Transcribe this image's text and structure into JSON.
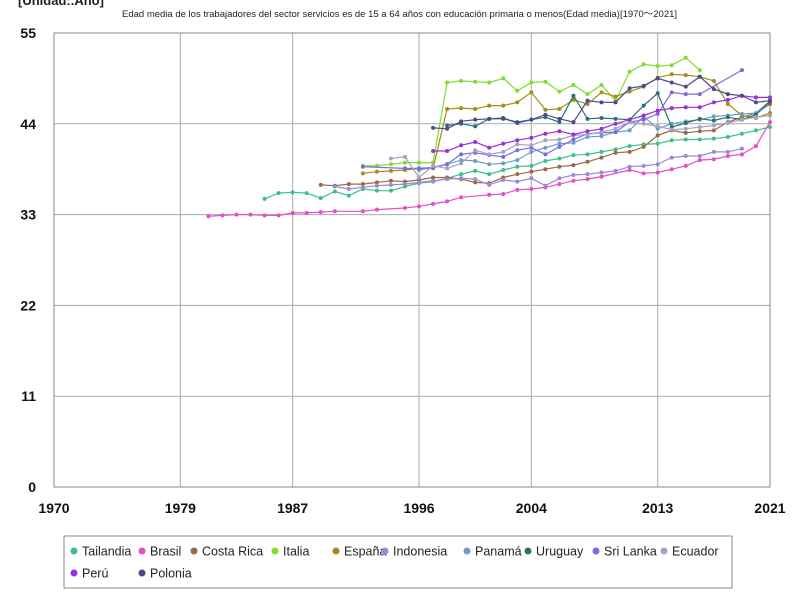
{
  "chart_data": {
    "type": "line",
    "title": "Edad media de los trabajadores del sector servicios es de 15 a 64 años con educación primaria o menos(Edad media)[1970〜2021]",
    "ylabel": "[Unidad:.Año]",
    "xlabel": "",
    "xlim": [
      1970,
      2021
    ],
    "ylim": [
      0,
      55
    ],
    "x_ticks": [
      1970,
      1979,
      1987,
      1996,
      2004,
      2013,
      2021
    ],
    "y_ticks": [
      0,
      11,
      22,
      33,
      44,
      55
    ],
    "grid": true,
    "legend_position": "bottom",
    "series": [
      {
        "name": "Tailandia",
        "color": "#3cc08a",
        "x": [
          1985,
          1986,
          1987,
          1988,
          1989,
          1990,
          1991,
          1992,
          1993,
          1994,
          1995,
          1996,
          1997,
          1998,
          1999,
          2000,
          2001,
          2002,
          2003,
          2004,
          2005,
          2006,
          2007,
          2008,
          2009,
          2010,
          2011,
          2012,
          2013,
          2014,
          2015,
          2016,
          2017,
          2018,
          2019,
          2020,
          2021
        ],
        "values": [
          34.9,
          35.6,
          35.7,
          35.6,
          35.0,
          35.8,
          35.3,
          36.1,
          35.9,
          35.9,
          36.4,
          36.8,
          37.0,
          37.4,
          37.9,
          38.3,
          37.9,
          38.4,
          38.8,
          38.9,
          39.5,
          39.8,
          40.2,
          40.3,
          40.6,
          40.9,
          41.3,
          41.5,
          41.6,
          42.0,
          42.1,
          42.1,
          42.2,
          42.4,
          42.8,
          43.2,
          43.6
        ]
      },
      {
        "name": "Brasil",
        "color": "#e44fc7",
        "x": [
          1981,
          1982,
          1983,
          1984,
          1985,
          1986,
          1987,
          1988,
          1989,
          1990,
          1992,
          1993,
          1995,
          1996,
          1997,
          1998,
          1999,
          2001,
          2002,
          2003,
          2004,
          2005,
          2006,
          2007,
          2008,
          2009,
          2011,
          2012,
          2013,
          2014,
          2015,
          2016,
          2017,
          2018,
          2019,
          2020,
          2021
        ],
        "values": [
          32.8,
          32.9,
          33.0,
          33.0,
          32.9,
          32.9,
          33.2,
          33.2,
          33.3,
          33.4,
          33.4,
          33.6,
          33.8,
          34.0,
          34.3,
          34.6,
          35.1,
          35.4,
          35.5,
          36.0,
          36.1,
          36.3,
          36.7,
          37.1,
          37.3,
          37.6,
          38.4,
          38.0,
          38.1,
          38.5,
          38.9,
          39.6,
          39.7,
          40.1,
          40.3,
          41.3,
          44.2
        ]
      },
      {
        "name": "Costa Rica",
        "color": "#9b6a45",
        "x": [
          1989,
          1990,
          1991,
          1992,
          1993,
          1994,
          1995,
          1996,
          1997,
          1998,
          1999,
          2000,
          2001,
          2002,
          2003,
          2004,
          2005,
          2006,
          2007,
          2008,
          2009,
          2010,
          2011,
          2012,
          2013,
          2014,
          2015,
          2016,
          2017,
          2018,
          2019,
          2020,
          2021
        ],
        "values": [
          36.6,
          36.5,
          36.7,
          36.7,
          36.9,
          37.1,
          37.0,
          37.2,
          37.5,
          37.5,
          37.3,
          36.9,
          36.8,
          37.5,
          37.9,
          38.2,
          38.5,
          38.8,
          39.0,
          39.4,
          39.9,
          40.5,
          40.6,
          41.2,
          42.6,
          43.2,
          42.9,
          43.1,
          43.2,
          44.2,
          44.8,
          45.3,
          46.4
        ]
      },
      {
        "name": "Italia",
        "color": "#7dde30",
        "x": [
          1992,
          1993,
          1994,
          1995,
          1996,
          1997,
          1998,
          1999,
          2000,
          2001,
          2002,
          2003,
          2004,
          2005,
          2006,
          2007,
          2008,
          2009,
          2010,
          2011,
          2012,
          2013,
          2014,
          2015,
          2016
        ],
        "values": [
          38.9,
          38.9,
          39.1,
          39.3,
          39.3,
          39.3,
          49.0,
          49.2,
          49.1,
          49.0,
          49.5,
          48.0,
          49.0,
          49.1,
          47.9,
          48.7,
          47.6,
          48.7,
          46.8,
          50.3,
          51.2,
          51.0,
          51.1,
          52.0,
          50.5
        ]
      },
      {
        "name": "España",
        "color": "#a68d1a",
        "x": [
          1992,
          1993,
          1994,
          1995,
          1996,
          1997,
          1998,
          1999,
          2000,
          2001,
          2002,
          2003,
          2004,
          2005,
          2006,
          2007,
          2008,
          2009,
          2010,
          2011,
          2012,
          2013,
          2014,
          2015,
          2016,
          2017,
          2018,
          2019,
          2020,
          2021
        ],
        "values": [
          38.0,
          38.2,
          38.3,
          38.4,
          38.6,
          38.6,
          45.8,
          45.9,
          45.8,
          46.2,
          46.2,
          46.6,
          47.8,
          45.7,
          45.8,
          46.9,
          46.4,
          47.8,
          47.3,
          47.9,
          48.5,
          49.6,
          50.0,
          49.9,
          49.7,
          49.2,
          46.4,
          45.0,
          44.7,
          45.3
        ]
      },
      {
        "name": "Indonesia",
        "color": "#9d87d8",
        "x": [
          1990,
          1991,
          1992,
          1993,
          1994,
          1995,
          1996,
          1997,
          1998,
          1999,
          2000,
          2001,
          2002,
          2003,
          2004,
          2005,
          2006,
          2007,
          2008,
          2009,
          2010,
          2011,
          2012,
          2013,
          2014,
          2015,
          2016,
          2017,
          2018,
          2019
        ],
        "values": [
          36.4,
          36.1,
          36.3,
          36.5,
          36.6,
          36.7,
          36.9,
          37.1,
          37.3,
          37.4,
          37.3,
          36.6,
          37.2,
          37.0,
          37.4,
          36.5,
          37.4,
          37.8,
          37.9,
          38.1,
          38.3,
          38.8,
          38.9,
          39.1,
          39.9,
          40.1,
          40.1,
          40.6,
          40.6,
          41.0
        ]
      },
      {
        "name": "Panamá",
        "color": "#6e9dcc",
        "x": [
          1996,
          1997,
          1998,
          1999,
          2000,
          2001,
          2002,
          2003,
          2004,
          2005,
          2006,
          2007,
          2008,
          2009,
          2010,
          2011,
          2012,
          2013,
          2014,
          2015,
          2016,
          2017,
          2018,
          2019,
          2020,
          2021
        ],
        "values": [
          38.4,
          38.7,
          39.1,
          39.6,
          39.5,
          39.1,
          39.2,
          39.6,
          40.6,
          41.1,
          41.6,
          41.7,
          42.4,
          42.5,
          43.0,
          43.2,
          44.9,
          43.4,
          44.0,
          44.3,
          44.5,
          44.9,
          45.0,
          45.2,
          45.3,
          46.8
        ]
      },
      {
        "name": "Uruguay",
        "color": "#2a6e70",
        "x": [
          1998,
          1999,
          2000,
          2001,
          2002,
          2003,
          2004,
          2005,
          2006,
          2007,
          2008,
          2009,
          2010,
          2011,
          2012,
          2013,
          2014,
          2015,
          2016,
          2017,
          2018,
          2019,
          2020,
          2021
        ],
        "values": [
          43.8,
          44.0,
          43.7,
          44.6,
          44.6,
          44.2,
          44.5,
          44.8,
          44.2,
          47.4,
          44.6,
          44.7,
          44.6,
          44.5,
          46.2,
          47.7,
          43.6,
          44.1,
          44.6,
          44.4,
          44.8,
          44.5,
          45.1,
          46.7
        ]
      },
      {
        "name": "Sri Lanka",
        "color": "#7e68e0",
        "x": [
          1992,
          1995,
          1996,
          1997,
          1998,
          1999,
          2000,
          2001,
          2002,
          2003,
          2004,
          2005,
          2006,
          2007,
          2008,
          2009,
          2010,
          2011,
          2012,
          2013,
          2014,
          2015,
          2016,
          2019
        ],
        "values": [
          38.8,
          38.6,
          38.6,
          38.7,
          39.1,
          40.3,
          40.5,
          40.2,
          40.0,
          40.8,
          41.1,
          40.3,
          41.2,
          42.1,
          42.8,
          42.9,
          43.0,
          44.2,
          44.5,
          45.2,
          47.8,
          47.6,
          47.6,
          50.5
        ]
      },
      {
        "name": "Ecuador",
        "color": "#a3a3c4",
        "x": [
          1994,
          1995,
          1996,
          1997,
          1998,
          1999,
          2000,
          2001,
          2002,
          2003,
          2004,
          2005,
          2006,
          2007,
          2008,
          2009,
          2010,
          2011,
          2012,
          2013,
          2014,
          2015,
          2016,
          2017,
          2018,
          2019,
          2020,
          2021
        ],
        "values": [
          39.8,
          40.0,
          37.5,
          38.9,
          38.6,
          39.2,
          40.8,
          40.3,
          40.6,
          41.5,
          41.4,
          42.0,
          42.1,
          42.6,
          42.7,
          43.0,
          43.4,
          44.2,
          44.0,
          43.7,
          43.3,
          43.4,
          43.6,
          43.8,
          44.1,
          44.5,
          44.8,
          45.0
        ]
      },
      {
        "name": "Perú",
        "color": "#9a2fd8",
        "x": [
          1997,
          1998,
          1999,
          2000,
          2001,
          2002,
          2003,
          2004,
          2005,
          2006,
          2007,
          2008,
          2009,
          2010,
          2011,
          2012,
          2013,
          2014,
          2015,
          2016,
          2017,
          2018,
          2019,
          2020,
          2021
        ],
        "values": [
          40.7,
          40.7,
          41.4,
          41.8,
          41.1,
          41.6,
          42.0,
          42.3,
          42.8,
          43.1,
          42.7,
          43.1,
          43.4,
          44.0,
          44.5,
          45.0,
          45.6,
          45.9,
          46.0,
          46.0,
          46.6,
          46.9,
          47.4,
          47.2,
          47.2
        ]
      },
      {
        "name": "Polonia",
        "color": "#4c4a8a",
        "x": [
          1997,
          1998,
          1999,
          2000,
          2001,
          2002,
          2003,
          2004,
          2005,
          2006,
          2007,
          2008,
          2009,
          2010,
          2011,
          2012,
          2013,
          2014,
          2015,
          2016,
          2017,
          2018,
          2019,
          2020,
          2021
        ],
        "values": [
          43.5,
          43.4,
          44.3,
          44.5,
          44.6,
          44.7,
          44.1,
          44.5,
          45.1,
          44.6,
          44.2,
          46.8,
          46.6,
          46.6,
          48.3,
          48.6,
          49.5,
          49.0,
          48.5,
          49.7,
          48.2,
          47.6,
          47.4,
          46.6,
          46.8
        ]
      }
    ]
  }
}
